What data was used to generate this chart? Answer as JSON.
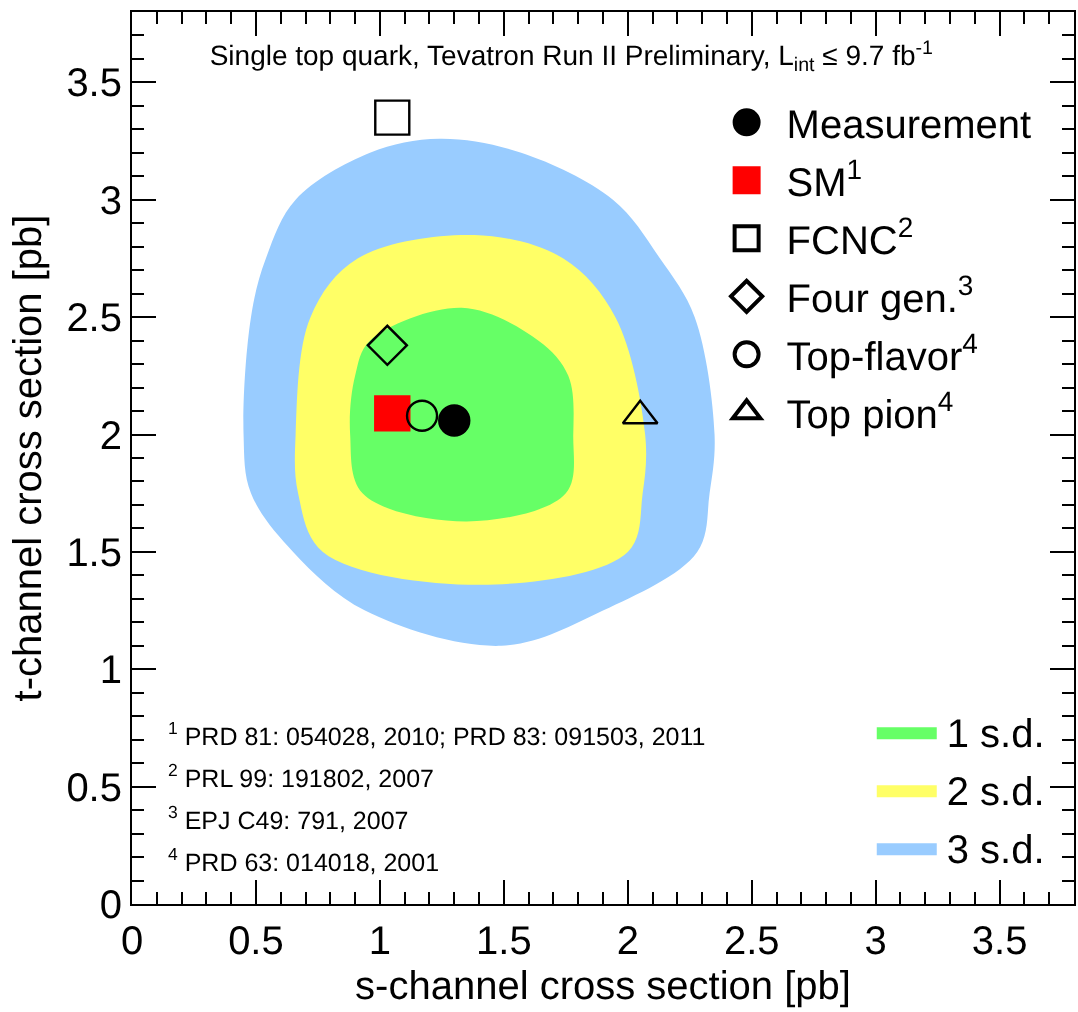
{
  "chart_data": {
    "type": "scatter",
    "title": "Single top quark, Tevatron Run II Preliminary, L$_{int}$ ≤ 9.7 fb$^{-1}$",
    "xlabel": "s-channel cross section [pb]",
    "ylabel": "t-channel cross section [pb]",
    "xlim": [
      0,
      3.8
    ],
    "xticks": [
      0,
      0.5,
      1,
      1.5,
      2,
      2.5,
      3,
      3.5
    ],
    "ylim": [
      0,
      3.8
    ],
    "yticks": [
      0,
      0.5,
      1,
      1.5,
      2,
      2.5,
      3,
      3.5
    ],
    "grid": false,
    "legend": "right",
    "series": [
      {
        "name": "3 s.d.",
        "type": "area",
        "color": "#99ccff",
        "x": [
          1.24,
          1.57,
          1.94,
          2.13,
          2.27,
          2.35,
          2.33,
          2.28,
          1.9,
          1.49,
          0.94,
          0.65,
          0.48,
          0.45,
          0.48,
          0.54,
          0.66,
          0.96,
          1.24
        ],
        "values": [
          3.26,
          3.2,
          3.0,
          2.75,
          2.5,
          2.0,
          1.75,
          1.5,
          1.25,
          1.1,
          1.25,
          1.5,
          1.75,
          2.0,
          2.5,
          2.75,
          3.0,
          3.2,
          3.26
        ]
      },
      {
        "name": "2 s.d.",
        "type": "area",
        "color": "#ffff66",
        "x": [
          1.38,
          1.74,
          1.95,
          2.07,
          2.06,
          2.0,
          1.41,
          0.77,
          0.67,
          0.66,
          0.72,
          0.91,
          1.38
        ],
        "values": [
          2.85,
          2.75,
          2.5,
          2.0,
          1.75,
          1.5,
          1.36,
          1.5,
          1.75,
          2.0,
          2.5,
          2.75,
          2.85
        ]
      },
      {
        "name": "1 s.d.",
        "type": "area",
        "color": "#66ff66",
        "x": [
          1.33,
          1.64,
          1.76,
          1.78,
          1.75,
          1.35,
          0.93,
          0.88,
          0.9,
          0.96,
          1.33
        ],
        "values": [
          2.54,
          2.4,
          2.25,
          2.0,
          1.75,
          1.63,
          1.75,
          2.0,
          2.25,
          2.4,
          2.54
        ]
      },
      {
        "name": "Measurement",
        "color": "#000000",
        "marker": "circle",
        "x": [
          1.3
        ],
        "values": [
          2.06
        ]
      },
      {
        "name": "SM$^{1}$",
        "color": "#ff0000",
        "marker": "square",
        "x": [
          1.05
        ],
        "values": [
          2.09
        ]
      },
      {
        "name": "FCNC$^{2}$",
        "color": "#000000",
        "marker": "square",
        "x": [
          1.05
        ],
        "values": [
          3.35
        ]
      },
      {
        "name": "Four gen.$^{3}$",
        "color": "#000000",
        "marker": "diamond",
        "x": [
          1.03
        ],
        "values": [
          2.38
        ]
      },
      {
        "name": "Top-flavor$^{4}$",
        "color": "#000000",
        "marker": "circle",
        "x": [
          1.17
        ],
        "values": [
          2.08
        ]
      },
      {
        "name": "Top pion$^{4}$",
        "color": "#000000",
        "marker": "triangle",
        "x": [
          2.05
        ],
        "values": [
          2.08
        ]
      }
    ],
    "annotations": [
      "$^{1}$ PRD 81: 054028, 2010; PRD 83: 091503, 2011",
      "$^{2}$ PRL 99: 191802, 2007",
      "$^{3}$ EPJ C49: 791, 2007",
      "$^{4}$ PRD 63: 014018, 2001"
    ]
  }
}
